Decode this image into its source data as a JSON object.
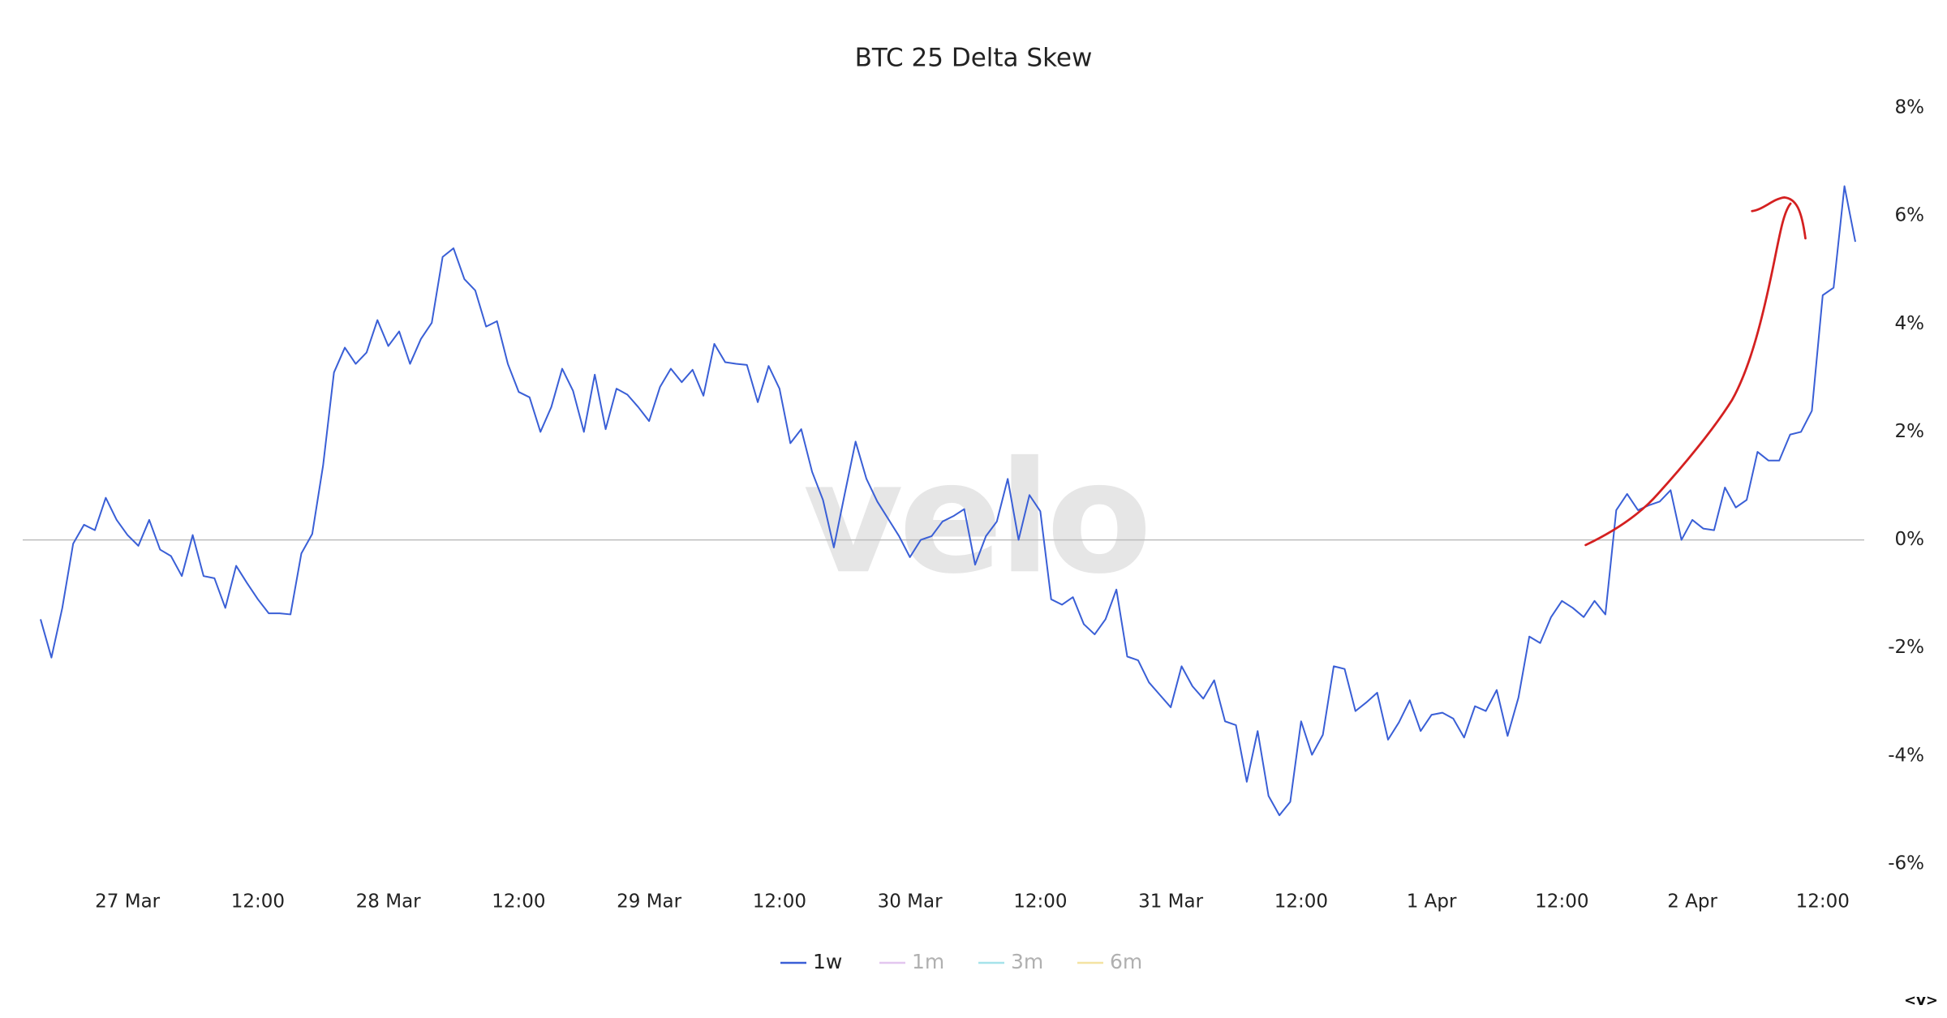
{
  "chart_data": {
    "type": "line",
    "title": "BTC 25 Delta Skew",
    "watermark": "velo",
    "corner_label": "<v>",
    "x": [
      "26 Mar 16:00",
      "26 Mar 17:00",
      "26 Mar 18:00",
      "26 Mar 19:00",
      "26 Mar 20:00",
      "26 Mar 21:00",
      "26 Mar 22:00",
      "26 Mar 23:00",
      "27 Mar 00:00",
      "27 Mar 01:00",
      "27 Mar 02:00",
      "27 Mar 03:00",
      "27 Mar 04:00",
      "27 Mar 05:00",
      "27 Mar 06:00",
      "27 Mar 07:00",
      "27 Mar 08:00",
      "27 Mar 09:00",
      "27 Mar 10:00",
      "27 Mar 11:00",
      "27 Mar 12:00",
      "27 Mar 13:00",
      "27 Mar 14:00",
      "27 Mar 15:00",
      "27 Mar 16:00",
      "27 Mar 17:00",
      "27 Mar 18:00",
      "27 Mar 19:00",
      "27 Mar 20:00",
      "27 Mar 21:00",
      "27 Mar 22:00",
      "27 Mar 23:00",
      "28 Mar 00:00",
      "28 Mar 01:00",
      "28 Mar 02:00",
      "28 Mar 03:00",
      "28 Mar 04:00",
      "28 Mar 05:00",
      "28 Mar 06:00",
      "28 Mar 07:00",
      "28 Mar 08:00",
      "28 Mar 09:00",
      "28 Mar 10:00",
      "28 Mar 11:00",
      "28 Mar 12:00",
      "28 Mar 13:00",
      "28 Mar 14:00",
      "28 Mar 15:00",
      "28 Mar 16:00",
      "28 Mar 17:00",
      "28 Mar 18:00",
      "28 Mar 19:00",
      "28 Mar 20:00",
      "28 Mar 21:00",
      "28 Mar 22:00",
      "28 Mar 23:00",
      "29 Mar 00:00",
      "29 Mar 01:00",
      "29 Mar 02:00",
      "29 Mar 03:00",
      "29 Mar 04:00",
      "29 Mar 05:00",
      "29 Mar 06:00",
      "29 Mar 07:00",
      "29 Mar 08:00",
      "29 Mar 09:00",
      "29 Mar 10:00",
      "29 Mar 11:00",
      "29 Mar 12:00",
      "29 Mar 13:00",
      "29 Mar 14:00",
      "29 Mar 15:00",
      "29 Mar 16:00",
      "29 Mar 17:00",
      "29 Mar 18:00",
      "29 Mar 19:00",
      "29 Mar 20:00",
      "29 Mar 21:00",
      "29 Mar 22:00",
      "29 Mar 23:00",
      "30 Mar 00:00",
      "30 Mar 01:00",
      "30 Mar 02:00",
      "30 Mar 03:00",
      "30 Mar 04:00",
      "30 Mar 05:00",
      "30 Mar 06:00",
      "30 Mar 07:00",
      "30 Mar 08:00",
      "30 Mar 09:00",
      "30 Mar 10:00",
      "30 Mar 11:00",
      "30 Mar 12:00",
      "30 Mar 13:00",
      "30 Mar 14:00",
      "30 Mar 15:00",
      "30 Mar 16:00",
      "30 Mar 17:00",
      "30 Mar 18:00",
      "30 Mar 19:00",
      "30 Mar 20:00",
      "30 Mar 21:00",
      "30 Mar 22:00",
      "30 Mar 23:00",
      "31 Mar 00:00",
      "31 Mar 01:00",
      "31 Mar 02:00",
      "31 Mar 03:00",
      "31 Mar 04:00",
      "31 Mar 05:00",
      "31 Mar 06:00",
      "31 Mar 07:00",
      "31 Mar 08:00",
      "31 Mar 09:00",
      "31 Mar 10:00",
      "31 Mar 11:00",
      "31 Mar 12:00",
      "31 Mar 13:00",
      "31 Mar 14:00",
      "31 Mar 15:00",
      "31 Mar 16:00",
      "31 Mar 17:00",
      "31 Mar 18:00",
      "31 Mar 19:00",
      "31 Mar 20:00",
      "31 Mar 21:00",
      "31 Mar 22:00",
      "31 Mar 23:00",
      "1 Apr 00:00",
      "1 Apr 01:00",
      "1 Apr 02:00",
      "1 Apr 03:00",
      "1 Apr 04:00",
      "1 Apr 05:00",
      "1 Apr 06:00",
      "1 Apr 07:00",
      "1 Apr 08:00",
      "1 Apr 09:00",
      "1 Apr 10:00",
      "1 Apr 11:00",
      "1 Apr 12:00",
      "1 Apr 13:00",
      "1 Apr 14:00",
      "1 Apr 15:00",
      "1 Apr 16:00",
      "1 Apr 17:00",
      "1 Apr 18:00",
      "1 Apr 19:00",
      "1 Apr 20:00",
      "1 Apr 21:00",
      "1 Apr 22:00",
      "1 Apr 23:00",
      "2 Apr 00:00",
      "2 Apr 01:00",
      "2 Apr 02:00",
      "2 Apr 03:00",
      "2 Apr 04:00",
      "2 Apr 05:00",
      "2 Apr 06:00",
      "2 Apr 07:00",
      "2 Apr 08:00",
      "2 Apr 09:00",
      "2 Apr 10:00",
      "2 Apr 11:00",
      "2 Apr 12:00",
      "2 Apr 13:00",
      "2 Apr 14:00",
      "2 Apr 15:00"
    ],
    "series": [
      {
        "name": "1w",
        "color": "#3a5fd6",
        "visible": true,
        "values": [
          -1.47,
          -2.18,
          -1.26,
          -0.07,
          0.28,
          0.18,
          0.78,
          0.37,
          0.09,
          -0.11,
          0.37,
          -0.18,
          -0.3,
          -0.67,
          0.09,
          -0.67,
          -0.71,
          -1.26,
          -0.48,
          -0.8,
          -1.1,
          -1.36,
          -1.36,
          -1.38,
          -0.25,
          0.11,
          1.38,
          3.1,
          3.56,
          3.26,
          3.47,
          4.07,
          3.59,
          3.86,
          3.26,
          3.72,
          4.02,
          5.24,
          5.4,
          4.83,
          4.62,
          3.95,
          4.05,
          3.26,
          2.74,
          2.64,
          2.0,
          2.46,
          3.17,
          2.76,
          2.0,
          3.06,
          2.05,
          2.8,
          2.69,
          2.46,
          2.2,
          2.83,
          3.17,
          2.92,
          3.15,
          2.67,
          3.63,
          3.29,
          3.26,
          3.24,
          2.55,
          3.22,
          2.8,
          1.79,
          2.05,
          1.26,
          0.74,
          -0.14,
          0.85,
          1.82,
          1.13,
          0.71,
          0.39,
          0.07,
          -0.32,
          0,
          0.07,
          0.34,
          0.44,
          0.57,
          -0.46,
          0.07,
          0.34,
          1.13,
          0,
          0.83,
          0.53,
          -1.1,
          -1.2,
          -1.06,
          -1.56,
          -1.75,
          -1.47,
          -0.92,
          -2.16,
          -2.23,
          -2.64,
          -2.87,
          -3.1,
          -2.34,
          -2.71,
          -2.94,
          -2.6,
          -3.36,
          -3.43,
          -4.48,
          -3.54,
          -4.74,
          -5.1,
          -4.85,
          -3.36,
          -3.98,
          -3.61,
          -2.34,
          -2.39,
          -3.17,
          -3.01,
          -2.83,
          -3.7,
          -3.38,
          -2.97,
          -3.54,
          -3.24,
          -3.2,
          -3.31,
          -3.66,
          -3.08,
          -3.17,
          -2.78,
          -3.63,
          -2.92,
          -1.79,
          -1.91,
          -1.43,
          -1.13,
          -1.26,
          -1.43,
          -1.13,
          -1.38,
          0.55,
          0.85,
          0.55,
          0.64,
          0.71,
          0.92,
          0,
          0.37,
          0.21,
          0.18,
          0.97,
          0.6,
          0.74,
          1.63,
          1.47,
          1.47,
          1.95,
          2.0,
          2.39,
          4.53,
          4.67,
          6.55,
          5.52
        ]
      },
      {
        "name": "1m",
        "color": "#e3c6ef",
        "visible": false
      },
      {
        "name": "3m",
        "color": "#a6e3ea",
        "visible": false
      },
      {
        "name": "6m",
        "color": "#f4e3a2",
        "visible": false
      }
    ],
    "ylim": [
      -6,
      8
    ],
    "yticks": [
      {
        "value": -6,
        "label": "-6%"
      },
      {
        "value": -4,
        "label": "-4%"
      },
      {
        "value": -2,
        "label": "-2%"
      },
      {
        "value": 0,
        "label": "0%"
      },
      {
        "value": 2,
        "label": "2%"
      },
      {
        "value": 4,
        "label": "4%"
      },
      {
        "value": 6,
        "label": "6%"
      },
      {
        "value": 8,
        "label": "8%"
      }
    ],
    "xticks": [
      {
        "value": "27 Mar 00:00",
        "label": "27 Mar"
      },
      {
        "value": "27 Mar 12:00",
        "label": "12:00"
      },
      {
        "value": "28 Mar 00:00",
        "label": "28 Mar"
      },
      {
        "value": "28 Mar 12:00",
        "label": "12:00"
      },
      {
        "value": "29 Mar 00:00",
        "label": "29 Mar"
      },
      {
        "value": "29 Mar 12:00",
        "label": "12:00"
      },
      {
        "value": "30 Mar 00:00",
        "label": "30 Mar"
      },
      {
        "value": "30 Mar 12:00",
        "label": "12:00"
      },
      {
        "value": "31 Mar 00:00",
        "label": "31 Mar"
      },
      {
        "value": "31 Mar 12:00",
        "label": "12:00"
      },
      {
        "value": "1 Apr 00:00",
        "label": "1 Apr"
      },
      {
        "value": "1 Apr 12:00",
        "label": "12:00"
      },
      {
        "value": "2 Apr 00:00",
        "label": "2 Apr"
      },
      {
        "value": "2 Apr 12:00",
        "label": "12:00"
      }
    ],
    "grid": false,
    "zero_line": true,
    "y_axis_side": "right",
    "legend": "bottom"
  }
}
